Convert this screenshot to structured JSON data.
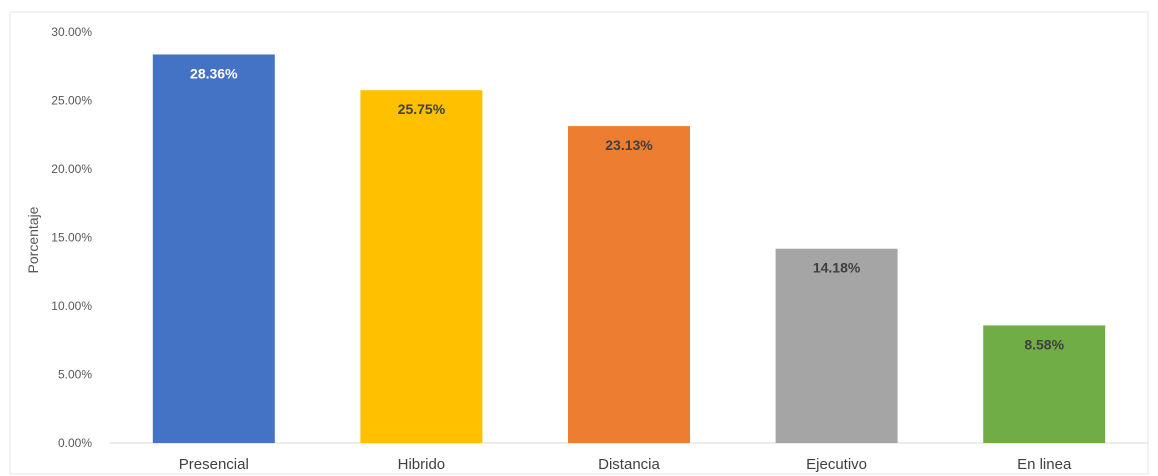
{
  "chart_data": {
    "type": "bar",
    "title": "",
    "xlabel": "",
    "ylabel": "Porcentaje",
    "ylim": [
      0,
      30
    ],
    "yticks": [
      0,
      5,
      10,
      15,
      20,
      25,
      30
    ],
    "ytick_labels": [
      "0.00%",
      "5.00%",
      "10.00%",
      "15.00%",
      "20.00%",
      "25.00%",
      "30.00%"
    ],
    "categories": [
      "Presencial",
      "Hibrido",
      "Distancia",
      "Ejecutivo",
      "En linea"
    ],
    "values": [
      28.36,
      25.75,
      23.13,
      14.18,
      8.58
    ],
    "data_labels": [
      "28.36%",
      "25.75%",
      "23.13%",
      "14.18%",
      "8.58%"
    ],
    "colors": [
      "#4472C4",
      "#FFC000",
      "#ED7D31",
      "#A5A5A5",
      "#70AD47"
    ],
    "label_colors": [
      "#ffffff",
      "#404040",
      "#404040",
      "#404040",
      "#404040"
    ],
    "grid": false,
    "legend": "none"
  }
}
